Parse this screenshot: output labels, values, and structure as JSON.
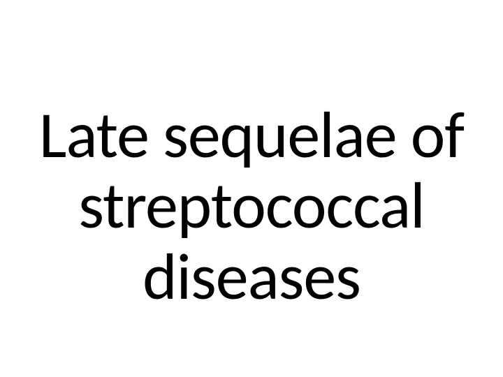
{
  "slide": {
    "title_line1": "Late sequelae of",
    "title_line2": "streptococcal",
    "title_line3": "diseases",
    "text_color": "#000000",
    "background_color": "#ffffff",
    "font_size": 94,
    "font_weight": 400,
    "font_family": "Calibri, Arial, sans-serif"
  }
}
